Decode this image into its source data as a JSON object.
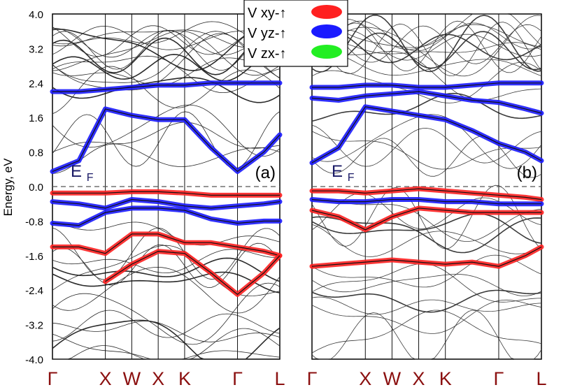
{
  "chart_data": [
    {
      "type": "line",
      "panel_label": "(a)",
      "fermi_label": {
        "main": "E",
        "sub": "F"
      },
      "ylabel": "Energy, eV",
      "ylim": [
        -4.0,
        4.0
      ],
      "yticks": [
        4.0,
        3.2,
        2.4,
        1.6,
        0.8,
        0.0,
        -0.8,
        -1.6,
        -2.4,
        -3.2,
        -4.0
      ],
      "ytick_labels": [
        "4.0",
        "3.2",
        "2.4",
        "1.6",
        "0.8",
        "0.0",
        "-0.8",
        "-1.6",
        "-2.4",
        "-3.2",
        "-4.0"
      ],
      "kpoints": [
        {
          "label": "Γ",
          "x": 0
        },
        {
          "label": "X",
          "x": 1
        },
        {
          "label": "W",
          "x": 1.5
        },
        {
          "label": "X",
          "x": 2
        },
        {
          "label": "K",
          "x": 2.5
        },
        {
          "label": "Γ",
          "x": 3.5
        },
        {
          "label": "L",
          "x": 4.3
        }
      ],
      "fermi_level": 0.0,
      "series": [
        {
          "name": "V xy-↑",
          "weight": "band character",
          "x": [
            0,
            0.5,
            1,
            1.5,
            2,
            2.5,
            3,
            3.5,
            4,
            4.3
          ],
          "y": [
            -0.15,
            -0.15,
            -0.15,
            -0.12,
            -0.12,
            -0.15,
            -0.2,
            -0.2,
            -0.2,
            -0.2
          ]
        },
        {
          "name": "V xy-↑",
          "weight": "band character",
          "x": [
            0,
            0.5,
            1,
            1.5,
            2,
            2.5,
            3,
            3.5,
            4,
            4.3
          ],
          "y": [
            -1.4,
            -1.4,
            -1.55,
            -1.1,
            -1.1,
            -1.3,
            -1.3,
            -1.4,
            -1.5,
            -1.6
          ]
        },
        {
          "name": "V xy-↑",
          "weight": "band character",
          "x": [
            1,
            1.5,
            2,
            2.5,
            3,
            3.5,
            4,
            4.3
          ],
          "y": [
            -2.2,
            -1.8,
            -1.5,
            -1.55,
            -2.0,
            -2.5,
            -2.0,
            -1.6
          ]
        },
        {
          "name": "V yz-↑",
          "weight": "band character",
          "x": [
            0,
            0.5,
            1,
            1.5,
            2,
            2.5,
            3,
            3.5,
            4,
            4.3
          ],
          "y": [
            0.35,
            0.6,
            1.8,
            1.65,
            1.55,
            1.55,
            0.9,
            0.35,
            0.8,
            1.2
          ]
        },
        {
          "name": "V yz-↑",
          "weight": "band character",
          "x": [
            0,
            0.5,
            1,
            1.5,
            2,
            2.5,
            3,
            3.5,
            4,
            4.3
          ],
          "y": [
            2.2,
            2.2,
            2.25,
            2.3,
            2.35,
            2.35,
            2.4,
            2.4,
            2.4,
            2.4
          ]
        },
        {
          "name": "V yz-↑",
          "weight": "band character",
          "x": [
            0,
            0.5,
            1,
            1.5,
            2,
            2.5,
            3,
            3.5,
            4,
            4.3
          ],
          "y": [
            -0.85,
            -0.9,
            -0.6,
            -0.5,
            -0.5,
            -0.55,
            -0.75,
            -0.85,
            -0.8,
            -0.8
          ]
        },
        {
          "name": "V yz-↑",
          "weight": "band character",
          "x": [
            0,
            0.5,
            1,
            1.5,
            2,
            2.5,
            3,
            3.5,
            4,
            4.3
          ],
          "y": [
            -0.35,
            -0.4,
            -0.5,
            -0.3,
            -0.35,
            -0.45,
            -0.5,
            -0.45,
            -0.4,
            -0.35
          ]
        }
      ]
    },
    {
      "type": "line",
      "panel_label": "(b)",
      "fermi_label": {
        "main": "E",
        "sub": "F"
      },
      "ylim": [
        -4.0,
        4.0
      ],
      "kpoints": [
        {
          "label": "Γ",
          "x": 0
        },
        {
          "label": "X",
          "x": 1
        },
        {
          "label": "W",
          "x": 1.5
        },
        {
          "label": "X",
          "x": 2
        },
        {
          "label": "K",
          "x": 2.5
        },
        {
          "label": "Γ",
          "x": 3.5
        },
        {
          "label": "L",
          "x": 4.3
        }
      ],
      "fermi_level": 0.0,
      "series": [
        {
          "name": "V yz-↑",
          "weight": "band character",
          "x": [
            0,
            0.5,
            1,
            1.5,
            2,
            2.5,
            3,
            3.5,
            4,
            4.3
          ],
          "y": [
            0.55,
            0.9,
            1.85,
            1.75,
            1.65,
            1.55,
            1.3,
            1.0,
            0.8,
            0.6
          ]
        },
        {
          "name": "V yz-↑",
          "weight": "band character",
          "x": [
            0,
            0.5,
            1,
            1.5,
            2,
            2.5,
            3,
            3.5,
            4,
            4.3
          ],
          "y": [
            2.05,
            2.0,
            2.1,
            2.15,
            2.2,
            2.1,
            2.0,
            1.95,
            1.8,
            1.7
          ]
        },
        {
          "name": "V yz-↑",
          "weight": "band character",
          "x": [
            0,
            0.5,
            1,
            1.5,
            2,
            2.5,
            3,
            3.5,
            4,
            4.3
          ],
          "y": [
            2.3,
            2.3,
            2.35,
            2.35,
            2.3,
            2.3,
            2.35,
            2.4,
            2.4,
            2.4
          ]
        },
        {
          "name": "V xy-↑",
          "weight": "band character",
          "x": [
            0,
            0.5,
            1,
            1.5,
            2,
            2.5,
            3,
            3.5,
            4,
            4.3
          ],
          "y": [
            -0.55,
            -0.7,
            -1.0,
            -0.7,
            -0.5,
            -0.55,
            -0.6,
            -0.6,
            -0.6,
            -0.6
          ]
        },
        {
          "name": "V xy-↑",
          "weight": "band character",
          "x": [
            0,
            0.5,
            1,
            1.5,
            2,
            2.5,
            3,
            3.5,
            4,
            4.3
          ],
          "y": [
            -0.1,
            -0.1,
            -0.15,
            -0.1,
            -0.05,
            -0.1,
            -0.15,
            -0.2,
            -0.25,
            -0.3
          ]
        },
        {
          "name": "V xy-↑",
          "weight": "band character",
          "x": [
            0,
            0.5,
            1,
            1.5,
            2,
            2.5,
            3,
            3.5,
            4,
            4.3
          ],
          "y": [
            -1.85,
            -1.8,
            -1.75,
            -1.7,
            -1.75,
            -1.8,
            -1.75,
            -1.85,
            -1.6,
            -1.4
          ]
        },
        {
          "name": "V yz-↑",
          "weight": "band character",
          "x": [
            0,
            0.5,
            1,
            1.5,
            2,
            2.5,
            3,
            3.5,
            4,
            4.3
          ],
          "y": [
            -0.3,
            -0.35,
            -0.35,
            -0.3,
            -0.3,
            -0.35,
            -0.35,
            -0.4,
            -0.4,
            -0.4
          ]
        }
      ]
    }
  ],
  "legend": {
    "placement": "top-center",
    "entries": [
      {
        "label": "V xy-↑",
        "color": "#ff2020"
      },
      {
        "label": "V yz-↑",
        "color": "#1a1aff"
      },
      {
        "label": "V zx-↑",
        "color": "#22ee22"
      }
    ]
  },
  "colors": {
    "xy": "#ff2020",
    "yz": "#1a1aff",
    "zx": "#22ee22",
    "band_line": "#222222",
    "kpoint_label": "#8b1010",
    "fermi_label": "#1a1a66"
  }
}
